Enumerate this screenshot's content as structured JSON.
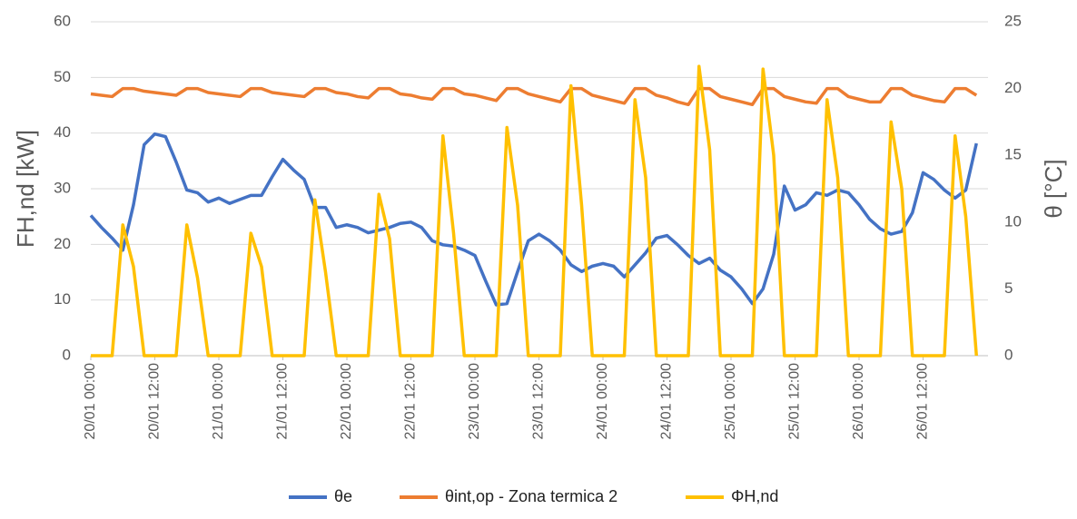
{
  "chart_data": {
    "type": "line",
    "ylabel": "FH,nd [kW]",
    "y2label": "θ [°C]",
    "categories": [
      "20/01 00:00",
      null,
      null,
      null,
      null,
      null,
      "20/01 12:00",
      null,
      null,
      null,
      null,
      null,
      "21/01 00:00",
      null,
      null,
      null,
      null,
      null,
      "21/01 12:00",
      null,
      null,
      null,
      null,
      null,
      "22/01 00:00",
      null,
      null,
      null,
      null,
      null,
      "22/01 12:00",
      null,
      null,
      null,
      null,
      null,
      "23/01 00:00",
      null,
      null,
      null,
      null,
      null,
      "23/01 12:00",
      null,
      null,
      null,
      null,
      null,
      "24/01 00:00",
      null,
      null,
      null,
      null,
      null,
      "24/01 12:00",
      null,
      null,
      null,
      null,
      null,
      "25/01 00:00",
      null,
      null,
      null,
      null,
      null,
      "25/01 12:00",
      null,
      null,
      null,
      null,
      null,
      "26/01 00:00",
      null,
      null,
      null,
      null,
      null,
      "26/01 12:00",
      null,
      null,
      null,
      null,
      null
    ],
    "series": [
      {
        "name": "θe",
        "color": "#4472c4",
        "axis": "y2",
        "values": [
          10.5,
          9.6,
          8.8,
          7.9,
          11.3,
          15.8,
          16.6,
          16.4,
          14.5,
          12.4,
          12.2,
          11.5,
          11.8,
          11.4,
          11.7,
          12.0,
          12.0,
          13.4,
          14.7,
          13.9,
          13.2,
          11.1,
          11.1,
          9.6,
          9.8,
          9.6,
          9.2,
          9.4,
          9.6,
          9.9,
          10.0,
          9.6,
          8.6,
          8.3,
          8.2,
          7.9,
          7.5,
          5.6,
          3.8,
          3.9,
          6.3,
          8.6,
          9.1,
          8.6,
          7.9,
          6.8,
          6.3,
          6.7,
          6.9,
          6.7,
          5.9,
          6.8,
          7.7,
          8.8,
          9.0,
          8.3,
          7.5,
          6.9,
          7.3,
          6.4,
          5.9,
          5.0,
          3.9,
          5.0,
          7.6,
          12.7,
          10.9,
          11.3,
          12.2,
          12.0,
          12.4,
          12.2,
          11.3,
          10.2,
          9.5,
          9.1,
          9.3,
          10.7,
          13.7,
          13.2,
          12.4,
          11.8,
          12.4,
          15.9
        ]
      },
      {
        "name": "θint,op - Zona termica 2",
        "color": "#ed7d31",
        "axis": "y2",
        "values": [
          19.6,
          19.5,
          19.4,
          20.0,
          20.0,
          19.8,
          19.7,
          19.6,
          19.5,
          20.0,
          20.0,
          19.7,
          19.6,
          19.5,
          19.4,
          20.0,
          20.0,
          19.7,
          19.6,
          19.5,
          19.4,
          20.0,
          20.0,
          19.7,
          19.6,
          19.4,
          19.3,
          20.0,
          20.0,
          19.6,
          19.5,
          19.3,
          19.2,
          20.0,
          20.0,
          19.6,
          19.5,
          19.3,
          19.1,
          20.0,
          20.0,
          19.6,
          19.4,
          19.2,
          19.0,
          20.0,
          20.0,
          19.5,
          19.3,
          19.1,
          18.9,
          20.0,
          20.0,
          19.5,
          19.3,
          19.0,
          18.8,
          20.0,
          20.0,
          19.4,
          19.2,
          19.0,
          18.8,
          20.0,
          20.0,
          19.4,
          19.2,
          19.0,
          18.9,
          20.0,
          20.0,
          19.4,
          19.2,
          19.0,
          19.0,
          20.0,
          20.0,
          19.5,
          19.3,
          19.1,
          19.0,
          20.0,
          20.0,
          19.5
        ]
      },
      {
        "name": "ΦH,nd",
        "color": "#ffc000",
        "values": [
          0,
          0,
          0,
          23.5,
          16,
          0,
          0,
          0,
          0,
          23.5,
          14,
          0,
          0,
          0,
          0,
          22,
          16,
          0,
          0,
          0,
          0,
          28,
          15,
          0,
          0,
          0,
          0,
          29,
          21,
          0,
          0,
          0,
          0,
          39.5,
          22,
          0,
          0,
          0,
          0,
          41,
          27,
          0,
          0,
          0,
          0,
          48.5,
          27,
          0,
          0,
          0,
          0,
          46,
          32,
          0,
          0,
          0,
          0,
          52,
          37,
          0,
          0,
          0,
          0,
          51.5,
          36,
          0,
          0,
          0,
          0,
          46,
          32,
          0,
          0,
          0,
          0,
          42,
          30,
          0,
          0,
          0,
          0,
          39.5,
          25,
          0
        ]
      }
    ],
    "ylim": [
      0,
      60
    ],
    "yticks": [
      0,
      10,
      20,
      30,
      40,
      50,
      60
    ],
    "y2lim": [
      0,
      25
    ],
    "y2ticks": [
      0,
      5,
      10,
      15,
      20,
      25
    ],
    "grid": true,
    "legend": "bottom"
  }
}
